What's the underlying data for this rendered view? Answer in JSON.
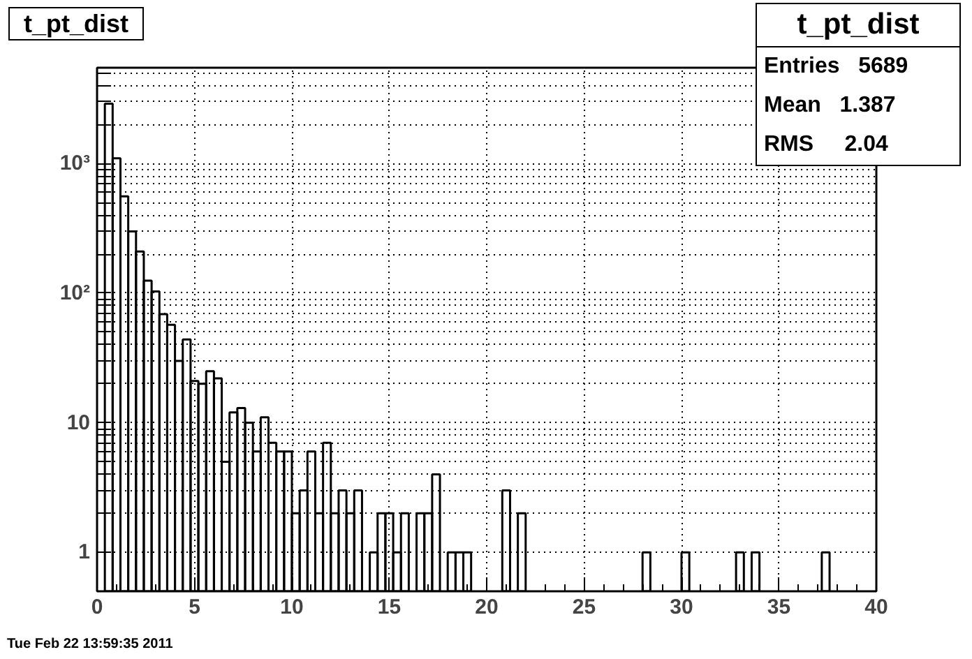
{
  "chart_data": {
    "type": "histogram",
    "title": "t_pt_dist",
    "bins": [
      0,
      0.4,
      0.8,
      1.2,
      1.6,
      2.0,
      2.4,
      2.8,
      3.2,
      3.6,
      4.0,
      4.4,
      4.8,
      5.2,
      5.6,
      6.0,
      6.4,
      6.8,
      7.2,
      7.6,
      8.0,
      8.4,
      8.8,
      9.2,
      9.6,
      10.0,
      10.4,
      10.8,
      11.2,
      11.6,
      12.0,
      12.4,
      12.8,
      13.2,
      13.6,
      14.0,
      14.4,
      14.8,
      15.2,
      15.6,
      16.0,
      16.4,
      16.8,
      17.2,
      17.6,
      18.0,
      18.4,
      18.8,
      19.2,
      19.6,
      20.0,
      20.4,
      20.8,
      21.2,
      21.6,
      22.0,
      22.4,
      22.8,
      23.2,
      23.6,
      24.0,
      24.4,
      24.8,
      25.2,
      25.6,
      26.0,
      26.4,
      26.8,
      27.2,
      27.6,
      28.0,
      28.4,
      28.8,
      29.2,
      29.6,
      30.0,
      30.4,
      30.8,
      31.2,
      31.6,
      32.0,
      32.4,
      32.8,
      33.2,
      33.6,
      34.0,
      34.4,
      34.8,
      35.2,
      35.6,
      36.0,
      36.4,
      36.8,
      37.2,
      37.6,
      38.0,
      38.4,
      38.8,
      39.2,
      39.6,
      40.0
    ],
    "values": [
      null,
      2900,
      1100,
      560,
      300,
      210,
      125,
      103,
      69,
      57,
      30,
      44,
      21,
      20,
      25,
      22,
      5,
      12,
      13,
      10,
      6,
      11,
      7,
      6,
      6,
      2,
      3,
      6,
      2,
      7,
      2,
      3,
      2,
      3,
      null,
      1,
      2,
      2,
      1,
      2,
      null,
      2,
      2,
      4,
      null,
      1,
      1,
      1,
      null,
      null,
      null,
      null,
      3,
      null,
      2,
      null,
      null,
      null,
      null,
      null,
      null,
      null,
      null,
      null,
      null,
      null,
      null,
      null,
      null,
      null,
      1,
      null,
      null,
      null,
      null,
      1,
      null,
      null,
      null,
      null,
      null,
      null,
      1,
      null,
      1,
      null,
      null,
      null,
      null,
      null,
      null,
      null,
      null,
      1,
      null,
      null,
      null,
      null,
      null,
      null
    ],
    "color": "#000000",
    "log": "y",
    "grid": true,
    "xlim": [
      0,
      40
    ],
    "xticks": [
      0,
      5,
      10,
      15,
      20,
      25,
      30,
      35,
      40
    ],
    "ylim": [
      0.5,
      5500
    ],
    "yticks": [
      {
        "value": 1,
        "label": "1"
      },
      {
        "value": 2,
        "label": null
      },
      {
        "value": 3,
        "label": null
      },
      {
        "value": 4,
        "label": null
      },
      {
        "value": 5,
        "label": null
      },
      {
        "value": 6,
        "label": null
      },
      {
        "value": 7,
        "label": null
      },
      {
        "value": 8,
        "label": null
      },
      {
        "value": 9,
        "label": null
      },
      {
        "value": 10,
        "label": "10"
      },
      {
        "value": 20,
        "label": null
      },
      {
        "value": 30,
        "label": null
      },
      {
        "value": 40,
        "label": null
      },
      {
        "value": 50,
        "label": null
      },
      {
        "value": 60,
        "label": null
      },
      {
        "value": 70,
        "label": null
      },
      {
        "value": 80,
        "label": null
      },
      {
        "value": 90,
        "label": null
      },
      {
        "value": 100,
        "label": "10²"
      },
      {
        "value": 200,
        "label": null
      },
      {
        "value": 300,
        "label": null
      },
      {
        "value": 400,
        "label": null
      },
      {
        "value": 500,
        "label": null
      },
      {
        "value": 600,
        "label": null
      },
      {
        "value": 700,
        "label": null
      },
      {
        "value": 800,
        "label": null
      },
      {
        "value": 900,
        "label": null
      },
      {
        "value": 1000,
        "label": "10³"
      },
      {
        "value": 2000,
        "label": null
      },
      {
        "value": 3000,
        "label": null
      },
      {
        "value": 4000,
        "label": null
      },
      {
        "value": 5000,
        "label": null
      }
    ],
    "annotations": [
      "t_pt_dist",
      "Entries   5689",
      "Mean   1.387",
      "RMS     2.04",
      "Tue Feb 22 13:59:35 2011"
    ]
  }
}
